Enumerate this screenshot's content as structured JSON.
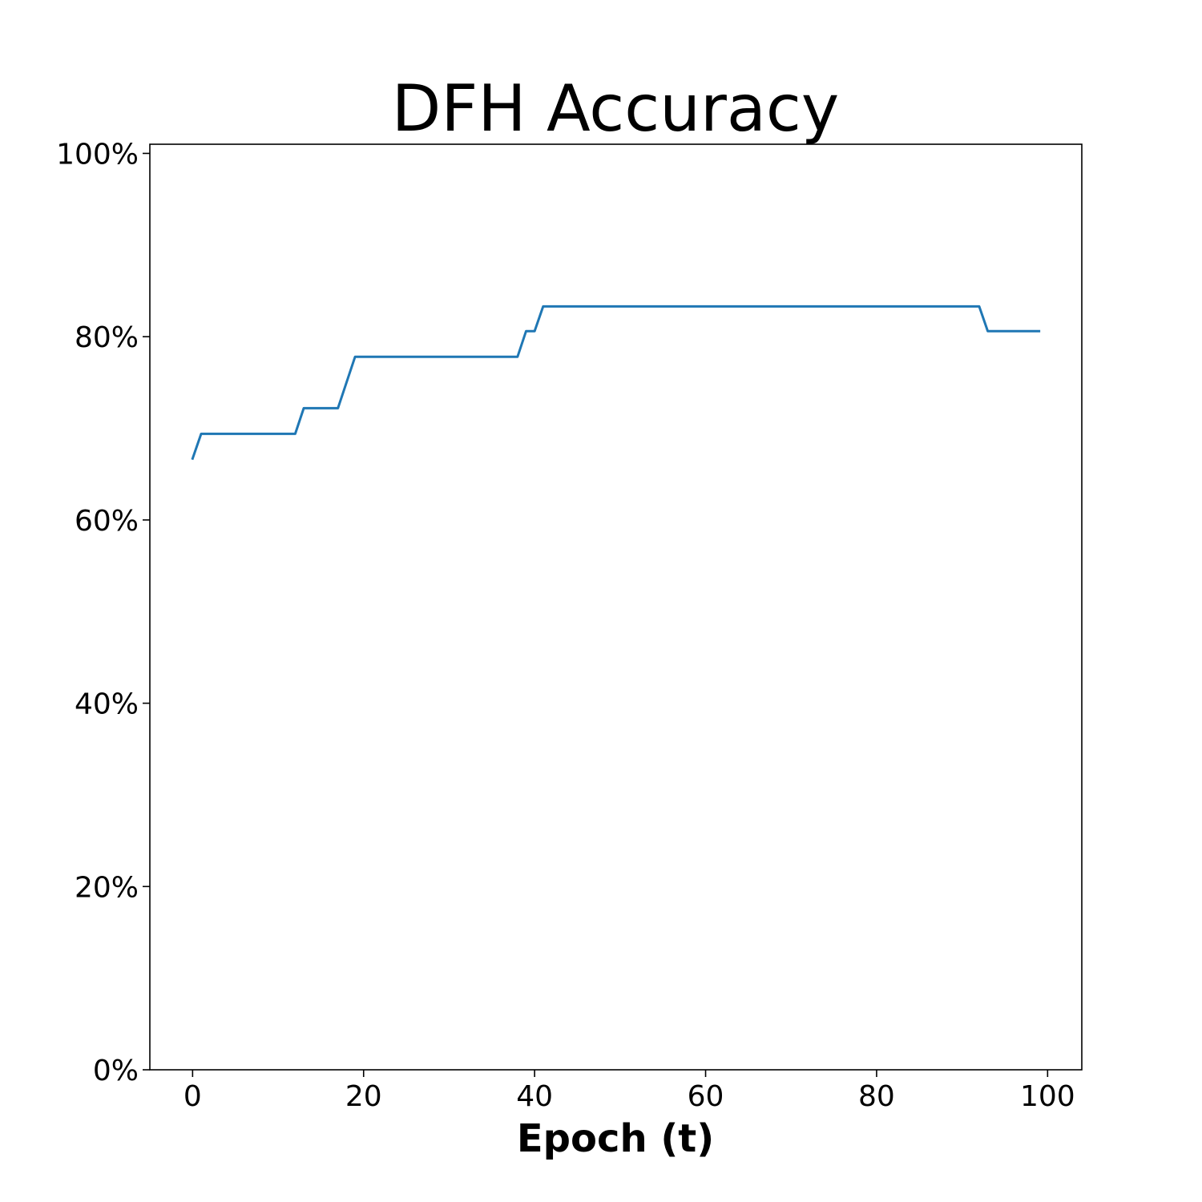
{
  "chart_data": {
    "type": "line",
    "title": "DFH Accuracy",
    "xlabel": "Epoch (t)",
    "ylabel": "",
    "xlim": [
      -5,
      104
    ],
    "ylim": [
      0,
      101
    ],
    "x_ticks": [
      0,
      20,
      40,
      60,
      80,
      100
    ],
    "x_tick_labels": [
      "0",
      "20",
      "40",
      "60",
      "80",
      "100"
    ],
    "y_ticks": [
      0,
      20,
      40,
      60,
      80,
      100
    ],
    "y_tick_labels": [
      "0%",
      "20%",
      "40%",
      "60%",
      "80%",
      "100%"
    ],
    "grid": false,
    "legend": "none",
    "series": [
      {
        "color": "#1f77b4",
        "x": [
          0,
          1,
          12,
          13,
          17,
          19,
          38,
          39,
          40,
          41,
          92,
          93,
          99
        ],
        "y": [
          66.7,
          69.4,
          69.4,
          72.2,
          72.2,
          77.8,
          77.8,
          80.6,
          80.6,
          83.3,
          83.3,
          80.6,
          80.6
        ]
      }
    ]
  }
}
